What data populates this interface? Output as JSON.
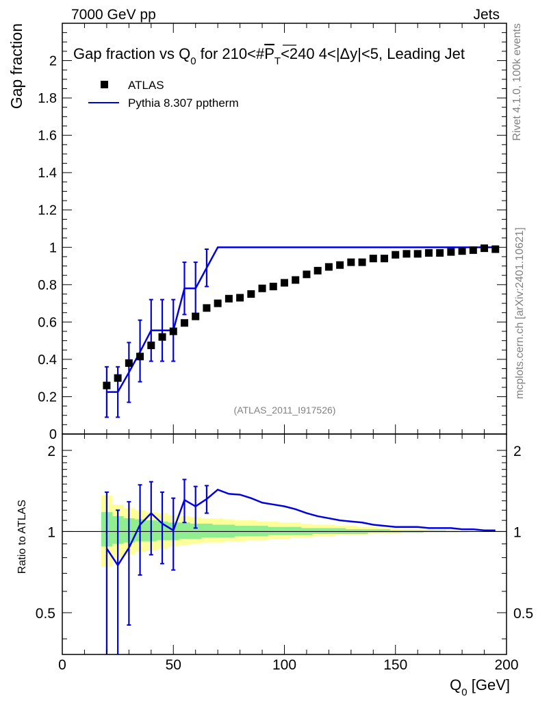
{
  "header": {
    "energy": "7000 GeV pp",
    "process": "Jets"
  },
  "side_text": {
    "rivet": "Rivet 4.1.0,  100k events",
    "source": "mcplots.cern.ch [arXiv:2401.10621]"
  },
  "watermark": "(ATLAS_2011_I917526)",
  "colors": {
    "mc": "#0000e0",
    "band_inner": "#90ee90",
    "band_outer": "#ffff99",
    "data": "#000000"
  },
  "chart_data": [
    {
      "type": "scatter",
      "name": "main",
      "title": {
        "prefix": "Gap fraction vs Q",
        "sub0": "0",
        "mid": " for 210<#",
        "pbar": "P",
        "subT": "T",
        "suffix": "<240  4<|Δy|<5, Leading Jet"
      },
      "ylabel": "Gap fraction",
      "xlim": [
        0,
        200
      ],
      "ylim": [
        0,
        2.2
      ],
      "yticks": [
        0,
        0.2,
        0.4,
        0.6,
        0.8,
        1,
        1.2,
        1.4,
        1.6,
        1.8,
        2
      ],
      "ytick_labels": [
        "0",
        "0.2",
        "0.4",
        "0.6",
        "0.8",
        "1",
        "1.2",
        "1.4",
        "1.6",
        "1.8",
        "2"
      ],
      "legend": {
        "data_label": "ATLAS",
        "mc_label": "Pythia 8.307 pptherm",
        "position": "top-left"
      },
      "data_points": {
        "x": [
          20,
          25,
          30,
          35,
          40,
          45,
          50,
          55,
          60,
          65,
          70,
          75,
          80,
          85,
          90,
          95,
          100,
          105,
          110,
          115,
          120,
          125,
          130,
          135,
          140,
          145,
          150,
          155,
          160,
          165,
          170,
          175,
          180,
          185,
          190,
          195
        ],
        "y": [
          0.26,
          0.3,
          0.38,
          0.415,
          0.475,
          0.52,
          0.55,
          0.595,
          0.63,
          0.675,
          0.7,
          0.725,
          0.73,
          0.75,
          0.78,
          0.79,
          0.81,
          0.825,
          0.855,
          0.875,
          0.895,
          0.905,
          0.92,
          0.92,
          0.94,
          0.94,
          0.96,
          0.965,
          0.965,
          0.97,
          0.97,
          0.975,
          0.98,
          0.985,
          0.995,
          0.99
        ]
      },
      "mc_line": {
        "x": [
          20,
          25,
          30,
          35,
          40,
          45,
          50,
          55,
          60,
          65,
          70,
          75,
          80,
          85,
          90,
          95,
          100,
          105,
          110,
          115,
          120,
          125,
          130,
          135,
          140,
          145,
          150,
          155,
          160,
          165,
          170,
          175,
          180,
          185,
          190,
          195
        ],
        "y": [
          0.225,
          0.225,
          0.33,
          0.44,
          0.555,
          0.555,
          0.555,
          0.78,
          0.78,
          0.89,
          1,
          1,
          1,
          1,
          1,
          1,
          1,
          1,
          1,
          1,
          1,
          1,
          1,
          1,
          1,
          1,
          1,
          1,
          1,
          1,
          1,
          1,
          1,
          1,
          1,
          1
        ]
      },
      "mc_errors": [
        {
          "x": 20,
          "lo": 0.09,
          "hi": 0.36
        },
        {
          "x": 25,
          "lo": 0.09,
          "hi": 0.36
        },
        {
          "x": 30,
          "lo": 0.17,
          "hi": 0.49
        },
        {
          "x": 35,
          "lo": 0.28,
          "hi": 0.61
        },
        {
          "x": 40,
          "lo": 0.39,
          "hi": 0.72
        },
        {
          "x": 45,
          "lo": 0.39,
          "hi": 0.72
        },
        {
          "x": 50,
          "lo": 0.39,
          "hi": 0.72
        },
        {
          "x": 55,
          "lo": 0.64,
          "hi": 0.92
        },
        {
          "x": 60,
          "lo": 0.64,
          "hi": 0.92
        },
        {
          "x": 65,
          "lo": 0.79,
          "hi": 0.99
        }
      ]
    },
    {
      "type": "line",
      "name": "ratio",
      "ylabel": "Ratio to ATLAS",
      "xlabel_main": "Q",
      "xlabel_sub": "0",
      "xlabel_unit": " [GeV]",
      "xlim": [
        0,
        200
      ],
      "ylim": [
        0.35,
        2.3
      ],
      "yscale": "log",
      "yticks": [
        0.5,
        1,
        2
      ],
      "ytick_labels": [
        "0.5",
        "1",
        "2"
      ],
      "xticks": [
        0,
        50,
        100,
        150,
        200
      ],
      "xtick_labels": [
        "0",
        "50",
        "100",
        "150",
        "200"
      ],
      "band_x": [
        17.5,
        22.5,
        27.5,
        32.5,
        37.5,
        42.5,
        47.5,
        52.5,
        57.5,
        62.5,
        67.5,
        72.5,
        77.5,
        82.5,
        87.5,
        92.5,
        97.5,
        102.5,
        107.5,
        112.5,
        117.5,
        122.5,
        127.5,
        132.5,
        137.5,
        142.5,
        147.5,
        152.5,
        157.5,
        162.5,
        167.5,
        172.5,
        177.5,
        182.5,
        187.5,
        192.5,
        197.5
      ],
      "band_outer": [
        [
          0.74,
          1.36
        ],
        [
          0.8,
          1.26
        ],
        [
          0.82,
          1.22
        ],
        [
          0.84,
          1.2
        ],
        [
          0.85,
          1.18
        ],
        [
          0.86,
          1.17
        ],
        [
          0.88,
          1.15
        ],
        [
          0.89,
          1.14
        ],
        [
          0.9,
          1.13
        ],
        [
          0.91,
          1.12
        ],
        [
          0.91,
          1.12
        ],
        [
          0.92,
          1.11
        ],
        [
          0.92,
          1.1
        ],
        [
          0.93,
          1.1
        ],
        [
          0.93,
          1.09
        ],
        [
          0.94,
          1.09
        ],
        [
          0.94,
          1.08
        ],
        [
          0.95,
          1.08
        ],
        [
          0.95,
          1.07
        ],
        [
          0.96,
          1.06
        ],
        [
          0.96,
          1.06
        ],
        [
          0.97,
          1.05
        ],
        [
          0.97,
          1.05
        ],
        [
          0.97,
          1.04
        ],
        [
          0.98,
          1.04
        ],
        [
          0.98,
          1.03
        ],
        [
          0.98,
          1.03
        ],
        [
          0.99,
          1.02
        ],
        [
          0.99,
          1.02
        ],
        [
          0.99,
          1.02
        ],
        [
          0.99,
          1.01
        ],
        [
          0.99,
          1.01
        ],
        [
          0.995,
          1.01
        ],
        [
          0.995,
          1.01
        ],
        [
          0.995,
          1.005
        ],
        [
          1.0,
          1.005
        ]
      ],
      "band_inner": [
        [
          0.88,
          1.18
        ],
        [
          0.9,
          1.14
        ],
        [
          0.91,
          1.12
        ],
        [
          0.92,
          1.11
        ],
        [
          0.92,
          1.1
        ],
        [
          0.93,
          1.09
        ],
        [
          0.93,
          1.08
        ],
        [
          0.94,
          1.08
        ],
        [
          0.94,
          1.07
        ],
        [
          0.95,
          1.07
        ],
        [
          0.95,
          1.06
        ],
        [
          0.95,
          1.06
        ],
        [
          0.96,
          1.05
        ],
        [
          0.96,
          1.05
        ],
        [
          0.96,
          1.05
        ],
        [
          0.97,
          1.04
        ],
        [
          0.97,
          1.04
        ],
        [
          0.97,
          1.04
        ],
        [
          0.97,
          1.03
        ],
        [
          0.98,
          1.03
        ],
        [
          0.98,
          1.03
        ],
        [
          0.98,
          1.03
        ],
        [
          0.98,
          1.02
        ],
        [
          0.98,
          1.02
        ],
        [
          0.99,
          1.02
        ],
        [
          0.99,
          1.02
        ],
        [
          0.99,
          1.01
        ],
        [
          0.99,
          1.01
        ],
        [
          0.99,
          1.01
        ],
        [
          0.995,
          1.01
        ],
        [
          0.995,
          1.01
        ],
        [
          0.995,
          1.005
        ],
        [
          0.995,
          1.005
        ],
        [
          1.0,
          1.005
        ],
        [
          1.0,
          1.003
        ],
        [
          1.0,
          1.002
        ]
      ],
      "mc_ratio": {
        "x": [
          20,
          25,
          30,
          35,
          40,
          45,
          50,
          55,
          60,
          65,
          70,
          75,
          80,
          85,
          90,
          95,
          100,
          105,
          110,
          115,
          120,
          125,
          130,
          135,
          140,
          145,
          150,
          155,
          160,
          165,
          170,
          175,
          180,
          185,
          190,
          195
        ],
        "y": [
          0.865,
          0.75,
          0.87,
          1.06,
          1.17,
          1.07,
          1.01,
          1.31,
          1.24,
          1.32,
          1.43,
          1.38,
          1.37,
          1.33,
          1.28,
          1.26,
          1.24,
          1.21,
          1.17,
          1.14,
          1.12,
          1.1,
          1.09,
          1.08,
          1.06,
          1.05,
          1.04,
          1.04,
          1.04,
          1.03,
          1.03,
          1.03,
          1.02,
          1.02,
          1.01,
          1.01
        ]
      },
      "mc_ratio_errors": [
        {
          "x": 20,
          "lo": 0.33,
          "hi": 1.4
        },
        {
          "x": 25,
          "lo": 0.3,
          "hi": 1.2
        },
        {
          "x": 30,
          "lo": 0.45,
          "hi": 1.29
        },
        {
          "x": 35,
          "lo": 0.69,
          "hi": 1.49
        },
        {
          "x": 40,
          "lo": 0.82,
          "hi": 1.53
        },
        {
          "x": 45,
          "lo": 0.76,
          "hi": 1.4
        },
        {
          "x": 50,
          "lo": 0.72,
          "hi": 1.33
        },
        {
          "x": 55,
          "lo": 1.08,
          "hi": 1.56
        },
        {
          "x": 60,
          "lo": 1.03,
          "hi": 1.47
        },
        {
          "x": 65,
          "lo": 1.17,
          "hi": 1.48
        }
      ]
    }
  ]
}
